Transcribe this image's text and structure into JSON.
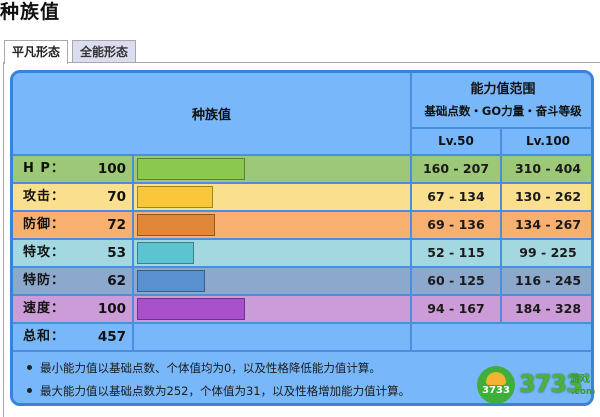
{
  "page_title": "种族值",
  "tabs": [
    {
      "label": "平凡形态",
      "active": true
    },
    {
      "label": "全能形态",
      "active": false
    }
  ],
  "table": {
    "header": {
      "base_stats_label": "种族值",
      "range_title": "能力值范围",
      "range_subtitle": "基础点数・GO力量・奋斗等级",
      "lv50_label": "Lv.50",
      "lv100_label": "Lv.100"
    },
    "rows": [
      {
        "label": "H P：",
        "value": "100",
        "bar_pct": 40,
        "lv50": "160 - 207",
        "lv100": "310 - 404",
        "row_color": "#9cc878",
        "bar_color": "#8bc850"
      },
      {
        "label": "攻击：",
        "value": "70",
        "bar_pct": 28,
        "lv50": "67 - 134",
        "lv100": "130 - 262",
        "row_color": "#fae08e",
        "bar_color": "#f8c83a"
      },
      {
        "label": "防御：",
        "value": "72",
        "bar_pct": 29,
        "lv50": "69 - 136",
        "lv100": "134 - 267",
        "row_color": "#f8b070",
        "bar_color": "#e08838"
      },
      {
        "label": "特攻：",
        "value": "53",
        "bar_pct": 21,
        "lv50": "52 - 115",
        "lv100": "99 - 225",
        "row_color": "#a4d8e0",
        "bar_color": "#5cc4d0"
      },
      {
        "label": "特防：",
        "value": "62",
        "bar_pct": 25,
        "lv50": "60 - 125",
        "lv100": "116 - 245",
        "row_color": "#8ca8cc",
        "bar_color": "#5890d0"
      },
      {
        "label": "速度：",
        "value": "100",
        "bar_pct": 40,
        "lv50": "94 - 167",
        "lv100": "184 - 328",
        "row_color": "#cc9cd8",
        "bar_color": "#a850cc"
      }
    ],
    "total": {
      "label": "总和：",
      "value": "457"
    }
  },
  "notes": [
    "最小能力值以基础点数、个体值均为0，以及性格降低能力值计算。",
    "最大能力值以基础点数为252，个体值为31，以及性格增加能力值计算。"
  ],
  "watermark": {
    "badge": "3733",
    "text": "3733",
    "sub": "游戏",
    "domain": ".com"
  },
  "colors": {
    "table_bg": "#78b8fa",
    "table_border": "#3a82d8"
  }
}
